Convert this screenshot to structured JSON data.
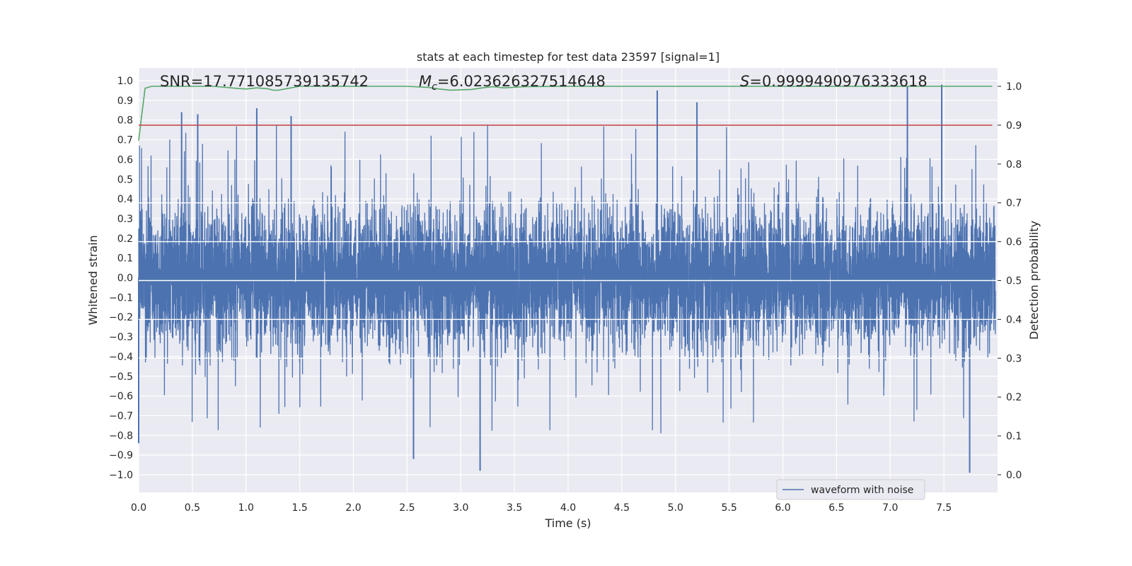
{
  "chart_data": {
    "type": "line",
    "title": "stats at each timestep for test data 23597 [signal=1]",
    "xlabel": "Time (s)",
    "ylabel": "Whitened strain",
    "y2label": "Detection probability",
    "xlim": [
      0.0,
      8.0
    ],
    "ylim": [
      -1.1,
      1.1
    ],
    "y2lim": [
      -0.05,
      1.04
    ],
    "xticks": [
      "0.0",
      "0.5",
      "1.0",
      "1.5",
      "2.0",
      "2.5",
      "3.0",
      "3.5",
      "4.0",
      "4.5",
      "5.0",
      "5.5",
      "6.0",
      "6.5",
      "7.0",
      "7.5"
    ],
    "yticks": [
      "1.0",
      "0.9",
      "0.8",
      "0.7",
      "0.6",
      "0.5",
      "0.4",
      "0.3",
      "0.2",
      "0.1",
      "0.0",
      "−0.1",
      "−0.2",
      "−0.3",
      "−0.4",
      "−0.5",
      "−0.6",
      "−0.7",
      "−0.8",
      "−0.9",
      "−1.0"
    ],
    "y2ticks": [
      "1.0",
      "0.9",
      "0.8",
      "0.7",
      "0.6",
      "0.5",
      "0.4",
      "0.3",
      "0.2",
      "0.1",
      "0.0"
    ],
    "grid": true,
    "legend": {
      "placement": "lower-right",
      "entries": [
        "waveform with noise"
      ]
    },
    "annotations": {
      "snr": "SNR=17.771085739135742",
      "mc_symbol": "M",
      "mc_sub": "c",
      "mc_value": "=6.023626327514648",
      "s_symbol": "S",
      "s_value": "=0.9999490976333618"
    },
    "series": [
      {
        "name": "waveform with noise",
        "axis": "left",
        "color": "#4c72b0",
        "envelope": "dense noise waveform, roughly within ±0.5 with spikes up to ±1.0",
        "peaks": [
          {
            "x": 0.4,
            "y": 0.84
          },
          {
            "x": 0.55,
            "y": 0.83
          },
          {
            "x": 1.1,
            "y": 0.86
          },
          {
            "x": 1.42,
            "y": 0.82
          },
          {
            "x": 4.83,
            "y": 0.95
          },
          {
            "x": 5.2,
            "y": 0.89
          },
          {
            "x": 7.16,
            "y": 0.97
          },
          {
            "x": 7.48,
            "y": 0.98
          },
          {
            "x": 3.18,
            "y": -0.98
          },
          {
            "x": 7.74,
            "y": -0.99
          },
          {
            "x": 2.56,
            "y": -0.92
          },
          {
            "x": 0.0,
            "y": -0.84
          }
        ]
      },
      {
        "name": "detection probability",
        "axis": "right",
        "color": "#55a868",
        "x": [
          0.0,
          0.03,
          0.06,
          0.12,
          0.3,
          0.5,
          0.7,
          0.9,
          1.0,
          1.1,
          1.2,
          1.25,
          1.3,
          1.4,
          1.5,
          2.0,
          2.5,
          2.7,
          2.8,
          2.9,
          3.0,
          3.1,
          3.2,
          3.3,
          3.4,
          3.6,
          4.0,
          5.0,
          6.0,
          7.0,
          7.5,
          7.95
        ],
        "values": [
          0.86,
          0.93,
          0.995,
          1.0,
          1.0,
          1.0,
          1.0,
          0.995,
          0.993,
          0.996,
          0.994,
          0.99,
          0.99,
          0.995,
          1.0,
          1.0,
          1.0,
          0.997,
          0.993,
          0.99,
          0.991,
          0.992,
          0.996,
          0.999,
          0.996,
          0.999,
          1.0,
          1.0,
          1.0,
          1.0,
          1.0,
          1.0
        ]
      },
      {
        "name": "threshold",
        "axis": "right",
        "color": "#c44e52",
        "x": [
          0.0,
          7.95
        ],
        "values": [
          0.9,
          0.9
        ]
      }
    ]
  }
}
